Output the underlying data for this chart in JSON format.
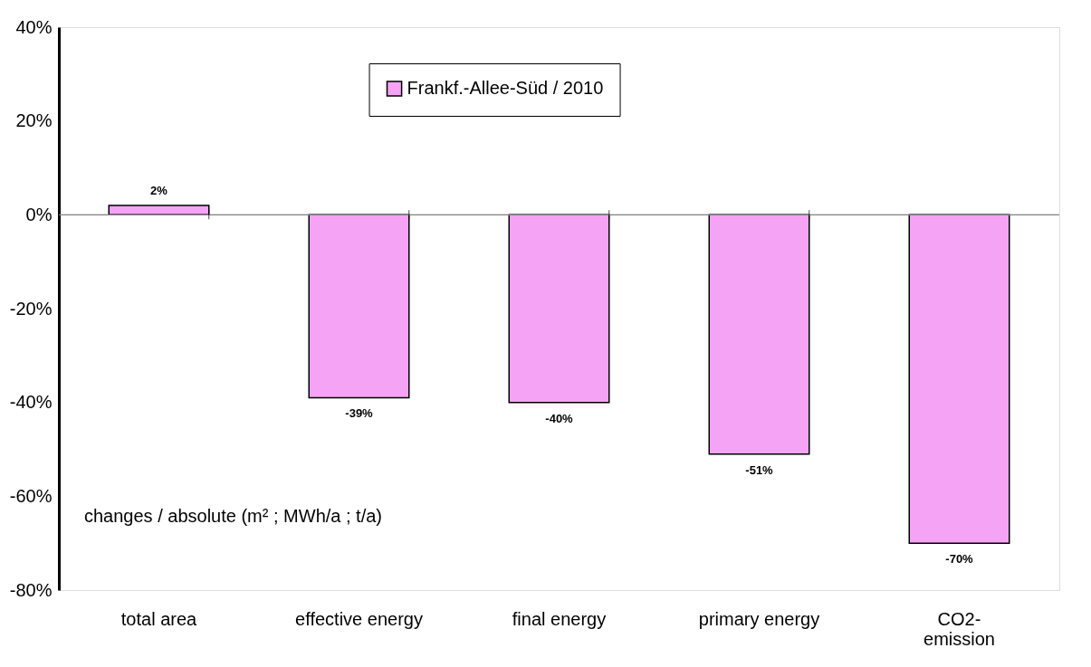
{
  "chart_data": {
    "type": "bar",
    "categories": [
      "total area",
      "effective energy",
      "final energy",
      "primary energy",
      "CO2-emission"
    ],
    "series": [
      {
        "name": "Frankf.-Allee-Süd / 2010",
        "color": "#f5a3f5",
        "values": [
          2,
          -39,
          -40,
          -51,
          -70
        ],
        "value_labels": [
          "2%",
          "-39%",
          "-40%",
          "-51%",
          "-70%"
        ]
      }
    ],
    "ylim": [
      -80,
      40
    ],
    "yticks": [
      {
        "value": -80,
        "label": "-80%"
      },
      {
        "value": -60,
        "label": "-60%"
      },
      {
        "value": -40,
        "label": "-40%"
      },
      {
        "value": -20,
        "label": "-20%"
      },
      {
        "value": 0,
        "label": "0%"
      },
      {
        "value": 20,
        "label": "20%"
      },
      {
        "value": 40,
        "label": "40%"
      }
    ],
    "ref_lines": [
      {
        "axis": "y",
        "value": 0,
        "color": "#808080"
      }
    ],
    "annotations": [
      "changes / absolute (m² ; MWh/a ; t/a)"
    ],
    "legend": "top"
  }
}
